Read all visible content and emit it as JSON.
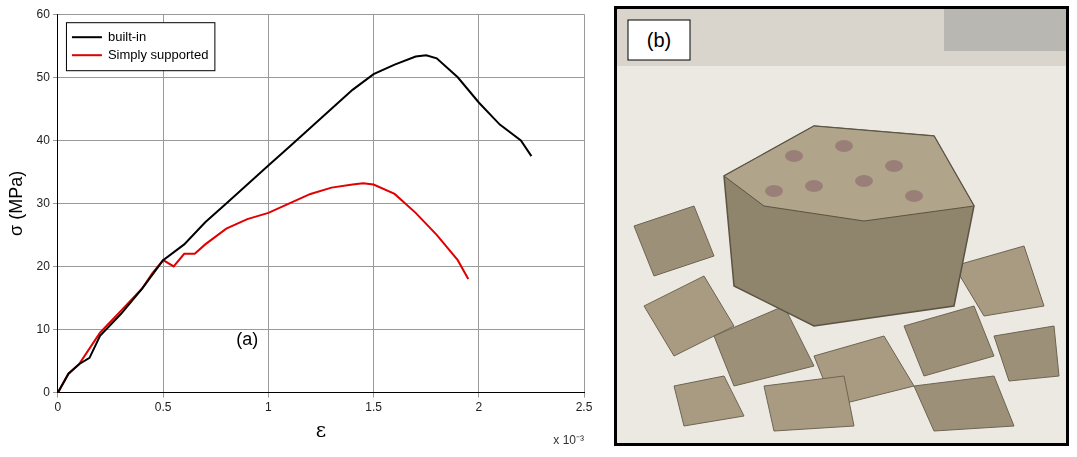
{
  "chart_data": {
    "type": "line",
    "x_label": "ε",
    "y_label": "σ (MPa)",
    "x_multiplier": "x 10⁻³",
    "panel_label": "(a)",
    "xlim": [
      0,
      2.5
    ],
    "xticks": [
      0,
      0.5,
      1,
      1.5,
      2,
      2.5
    ],
    "ylim": [
      0,
      60
    ],
    "yticks": [
      0,
      10,
      20,
      30,
      40,
      50,
      60
    ],
    "grid": true,
    "legend": "upper left",
    "marker": "none",
    "line_style": "solid",
    "series": [
      {
        "name": "built-in",
        "color": "#000000",
        "x": [
          0,
          0.05,
          0.1,
          0.15,
          0.2,
          0.3,
          0.4,
          0.5,
          0.6,
          0.7,
          0.8,
          0.9,
          1.0,
          1.1,
          1.2,
          1.3,
          1.4,
          1.5,
          1.6,
          1.7,
          1.75,
          1.8,
          1.9,
          2.0,
          2.1,
          2.2,
          2.25
        ],
        "values": [
          0,
          3,
          4.5,
          5.5,
          9,
          12.5,
          16.5,
          21,
          23.5,
          27,
          30,
          33,
          36,
          39,
          42,
          45,
          48,
          50.5,
          52,
          53.3,
          53.5,
          53,
          50,
          46,
          42.5,
          40,
          37.5
        ]
      },
      {
        "name": "Simply supported",
        "color": "#e00000",
        "x": [
          0,
          0.05,
          0.1,
          0.2,
          0.3,
          0.4,
          0.45,
          0.5,
          0.55,
          0.6,
          0.65,
          0.7,
          0.8,
          0.9,
          1.0,
          1.1,
          1.2,
          1.3,
          1.4,
          1.45,
          1.5,
          1.6,
          1.7,
          1.8,
          1.9,
          1.95
        ],
        "values": [
          0,
          3,
          4.5,
          9.5,
          13,
          16.5,
          19,
          21,
          20,
          22,
          22,
          23.5,
          26,
          27.5,
          28.5,
          30,
          31.5,
          32.5,
          33,
          33.2,
          33,
          31.5,
          28.5,
          25,
          21,
          18
        ]
      }
    ]
  },
  "photo_panel": {
    "label": "(b)"
  }
}
